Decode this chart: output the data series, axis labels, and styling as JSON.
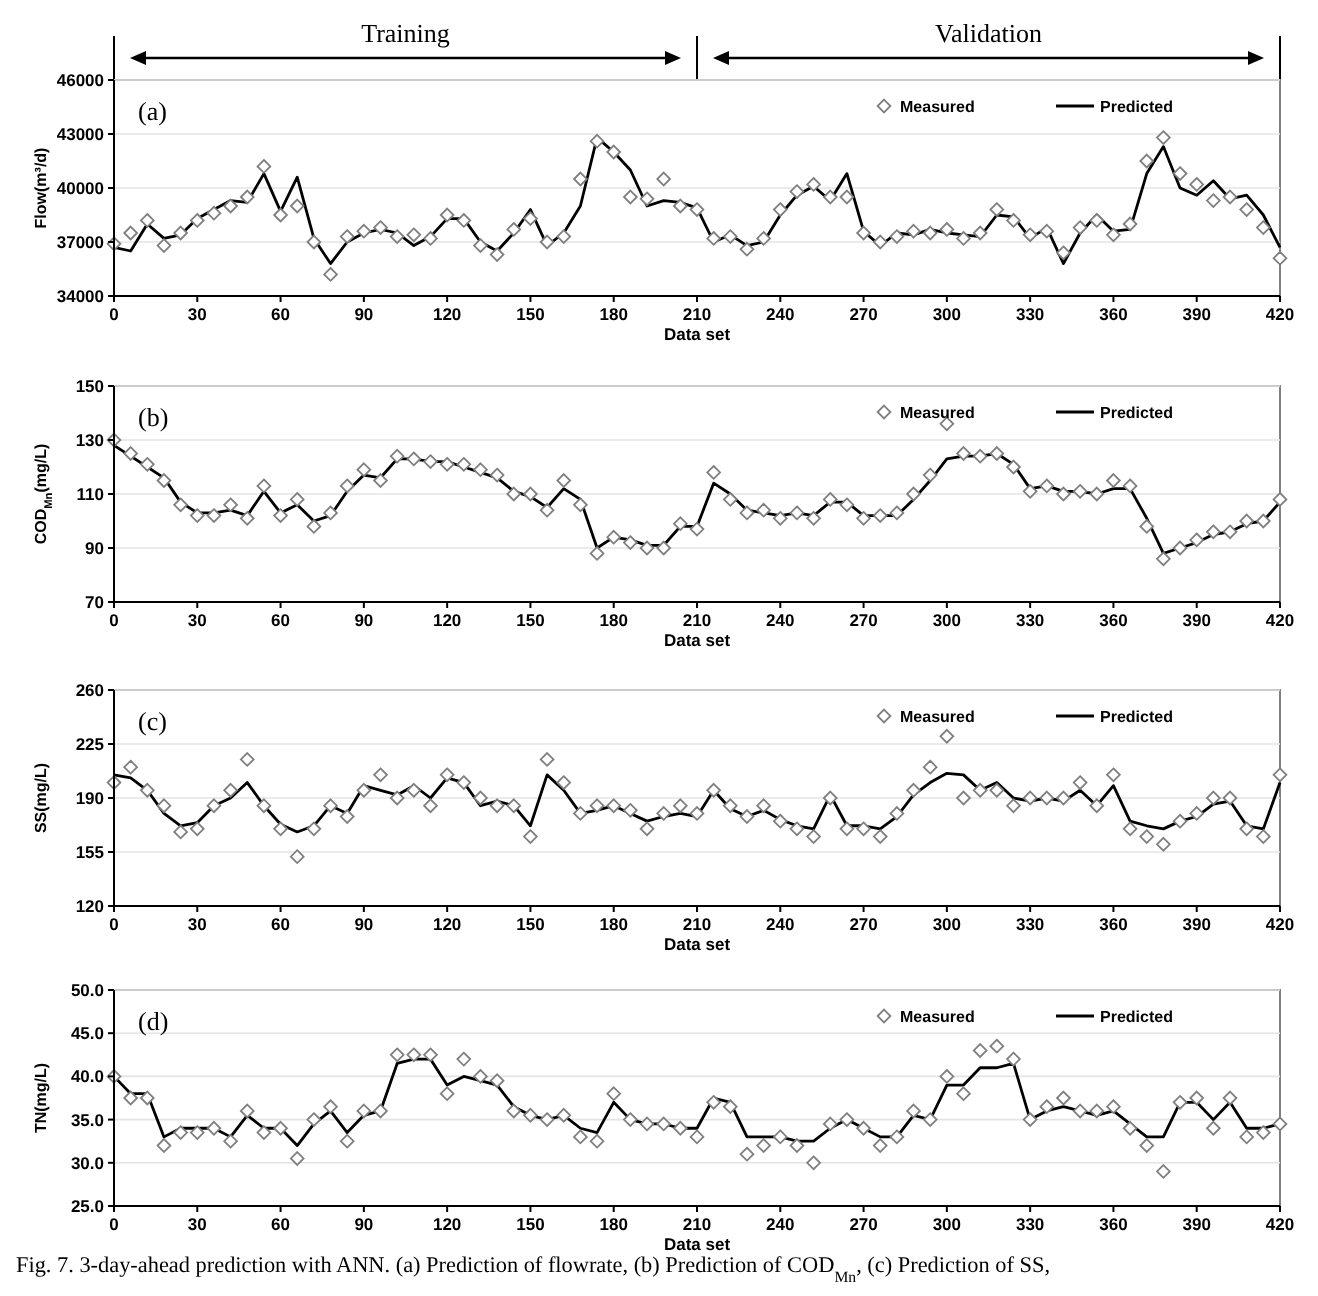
{
  "chart_data": [
    {
      "type": "line",
      "ylabel": "Flow(m³/d)",
      "xlabel": "Data set",
      "annotations": [
        "(a)",
        "Training",
        "Validation"
      ],
      "legend": "top right",
      "grid": "y",
      "xlim": [
        0,
        420
      ],
      "xticks": [
        0,
        30,
        60,
        90,
        120,
        150,
        180,
        210,
        240,
        270,
        300,
        330,
        360,
        390,
        420
      ],
      "ylim": [
        34000,
        46000
      ],
      "yticks": [
        34000,
        37000,
        40000,
        43000,
        46000
      ],
      "x": [
        0,
        6,
        12,
        18,
        24,
        30,
        36,
        42,
        48,
        54,
        60,
        66,
        72,
        78,
        84,
        90,
        96,
        102,
        108,
        114,
        120,
        126,
        132,
        138,
        144,
        150,
        156,
        162,
        168,
        174,
        180,
        186,
        192,
        198,
        204,
        210,
        216,
        222,
        228,
        234,
        240,
        246,
        252,
        258,
        264,
        270,
        276,
        282,
        288,
        294,
        300,
        306,
        312,
        318,
        324,
        330,
        336,
        342,
        348,
        354,
        360,
        366,
        372,
        378,
        384,
        390,
        396,
        402,
        408,
        414,
        420
      ],
      "series": [
        {
          "name": "Measured",
          "type": "scatter",
          "marker": "diamond",
          "color": "#7f7f7f",
          "values": [
            36900,
            37500,
            38200,
            36800,
            37500,
            38200,
            38600,
            39000,
            39500,
            41200,
            38500,
            39000,
            37000,
            35200,
            37300,
            37600,
            37800,
            37300,
            37400,
            37200,
            38500,
            38200,
            36800,
            36300,
            37700,
            38300,
            37000,
            37300,
            40500,
            42600,
            42000,
            39500,
            39400,
            40500,
            39000,
            38800,
            37200,
            37300,
            36600,
            37200,
            38800,
            39800,
            40200,
            39500,
            39500,
            37500,
            37000,
            37300,
            37600,
            37500,
            37700,
            37200,
            37500,
            38800,
            38200,
            37400,
            37600,
            36400,
            37800,
            38200,
            37400,
            38000,
            41500,
            42800,
            40800,
            40200,
            39300,
            39500,
            38800,
            37800,
            36100
          ]
        },
        {
          "name": "Predicted",
          "type": "line",
          "color": "#000000",
          "values": [
            36700,
            36500,
            38000,
            37200,
            37400,
            38300,
            38800,
            39300,
            39200,
            40800,
            38700,
            40600,
            37200,
            35800,
            37000,
            37500,
            37700,
            37500,
            36800,
            37300,
            38300,
            38300,
            37000,
            36500,
            37500,
            38800,
            36800,
            37500,
            39000,
            42800,
            42000,
            41000,
            39000,
            39300,
            39200,
            38900,
            37000,
            37400,
            36800,
            37000,
            38500,
            39600,
            40100,
            39300,
            40800,
            37600,
            36800,
            37500,
            37400,
            37700,
            37500,
            37400,
            37300,
            38500,
            38400,
            37200,
            37800,
            35800,
            37500,
            38500,
            37600,
            37700,
            40800,
            42300,
            40000,
            39600,
            40400,
            39400,
            39600,
            38500,
            36700
          ]
        }
      ]
    },
    {
      "type": "line",
      "ylabel": "COD$_{Mn}$(mg/L)",
      "xlabel": "Data set",
      "annotations": [
        "(b)"
      ],
      "legend": "top right",
      "grid": "y",
      "xlim": [
        0,
        420
      ],
      "xticks": [
        0,
        30,
        60,
        90,
        120,
        150,
        180,
        210,
        240,
        270,
        300,
        330,
        360,
        390,
        420
      ],
      "ylim": [
        70,
        150
      ],
      "yticks": [
        70,
        90,
        110,
        130,
        150
      ],
      "x": [
        0,
        6,
        12,
        18,
        24,
        30,
        36,
        42,
        48,
        54,
        60,
        66,
        72,
        78,
        84,
        90,
        96,
        102,
        108,
        114,
        120,
        126,
        132,
        138,
        144,
        150,
        156,
        162,
        168,
        174,
        180,
        186,
        192,
        198,
        204,
        210,
        216,
        222,
        228,
        234,
        240,
        246,
        252,
        258,
        264,
        270,
        276,
        282,
        288,
        294,
        300,
        306,
        312,
        318,
        324,
        330,
        336,
        342,
        348,
        354,
        360,
        366,
        372,
        378,
        384,
        390,
        396,
        402,
        408,
        414,
        420
      ],
      "series": [
        {
          "name": "Measured",
          "type": "scatter",
          "marker": "diamond",
          "color": "#7f7f7f",
          "values": [
            130,
            125,
            121,
            115,
            106,
            102,
            102,
            106,
            101,
            113,
            102,
            108,
            98,
            103,
            113,
            119,
            115,
            124,
            123,
            122,
            121,
            121,
            119,
            117,
            110,
            110,
            104,
            115,
            106,
            88,
            94,
            92,
            90,
            90,
            99,
            97,
            118,
            108,
            103,
            104,
            101,
            103,
            101,
            108,
            106,
            101,
            102,
            103,
            110,
            117,
            136,
            125,
            124,
            125,
            120,
            111,
            113,
            110,
            111,
            110,
            115,
            113,
            98,
            86,
            90,
            93,
            96,
            96,
            100,
            100,
            108
          ]
        },
        {
          "name": "Predicted",
          "type": "line",
          "color": "#000000",
          "values": [
            128,
            124,
            120,
            116,
            107,
            103,
            103,
            104,
            102,
            111,
            103,
            106,
            100,
            102,
            111,
            117,
            116,
            123,
            123,
            122,
            122,
            120,
            118,
            116,
            111,
            109,
            105,
            112,
            108,
            90,
            94,
            93,
            91,
            91,
            98,
            98,
            114,
            110,
            104,
            103,
            102,
            103,
            102,
            107,
            107,
            102,
            102,
            102,
            108,
            115,
            123,
            124,
            124,
            125,
            121,
            112,
            113,
            111,
            111,
            110,
            112,
            112,
            101,
            88,
            90,
            92,
            95,
            96,
            99,
            100,
            107
          ]
        }
      ]
    },
    {
      "type": "line",
      "ylabel": "SS(mg/L)",
      "xlabel": "Data set",
      "annotations": [
        "(c)"
      ],
      "legend": "top right",
      "grid": "y",
      "xlim": [
        0,
        420
      ],
      "xticks": [
        0,
        30,
        60,
        90,
        120,
        150,
        180,
        210,
        240,
        270,
        300,
        330,
        360,
        390,
        420
      ],
      "ylim": [
        120,
        260
      ],
      "yticks": [
        120,
        155,
        190,
        225,
        260
      ],
      "x": [
        0,
        6,
        12,
        18,
        24,
        30,
        36,
        42,
        48,
        54,
        60,
        66,
        72,
        78,
        84,
        90,
        96,
        102,
        108,
        114,
        120,
        126,
        132,
        138,
        144,
        150,
        156,
        162,
        168,
        174,
        180,
        186,
        192,
        198,
        204,
        210,
        216,
        222,
        228,
        234,
        240,
        246,
        252,
        258,
        264,
        270,
        276,
        282,
        288,
        294,
        300,
        306,
        312,
        318,
        324,
        330,
        336,
        342,
        348,
        354,
        360,
        366,
        372,
        378,
        384,
        390,
        396,
        402,
        408,
        414,
        420
      ],
      "series": [
        {
          "name": "Measured",
          "type": "scatter",
          "marker": "diamond",
          "color": "#7f7f7f",
          "values": [
            200,
            210,
            195,
            185,
            168,
            170,
            185,
            195,
            215,
            185,
            170,
            152,
            170,
            185,
            178,
            195,
            205,
            190,
            195,
            185,
            205,
            200,
            190,
            185,
            185,
            165,
            215,
            200,
            180,
            185,
            185,
            182,
            170,
            180,
            185,
            180,
            195,
            185,
            178,
            185,
            175,
            170,
            165,
            190,
            170,
            170,
            165,
            180,
            195,
            210,
            230,
            190,
            195,
            195,
            185,
            190,
            190,
            190,
            200,
            185,
            205,
            170,
            165,
            160,
            175,
            180,
            190,
            190,
            170,
            165,
            205
          ]
        },
        {
          "name": "Predicted",
          "type": "line",
          "color": "#000000",
          "values": [
            205,
            203,
            195,
            180,
            172,
            174,
            185,
            190,
            200,
            185,
            173,
            168,
            172,
            185,
            180,
            198,
            195,
            192,
            198,
            190,
            203,
            200,
            185,
            188,
            185,
            172,
            205,
            195,
            180,
            182,
            185,
            180,
            175,
            178,
            180,
            178,
            195,
            183,
            178,
            182,
            176,
            172,
            170,
            192,
            172,
            172,
            170,
            178,
            192,
            200,
            206,
            205,
            195,
            200,
            190,
            188,
            190,
            188,
            195,
            185,
            198,
            175,
            172,
            170,
            175,
            178,
            186,
            188,
            172,
            170,
            200
          ]
        }
      ]
    },
    {
      "type": "line",
      "ylabel": "TN(mg/L)",
      "xlabel": "Data set",
      "annotations": [
        "(d)",
        "Fig. 7. 3-day-ahead prediction with ANN. (a) Prediction of flowrate, (b) Prediction of COD$_{Mn}$, (c) Prediction of SS,"
      ],
      "legend": "top right",
      "grid": "y",
      "xlim": [
        0,
        420
      ],
      "xticks": [
        0,
        30,
        60,
        90,
        120,
        150,
        180,
        210,
        240,
        270,
        300,
        330,
        360,
        390,
        420
      ],
      "ylim": [
        25,
        50
      ],
      "yticks": [
        {
          "value": 25,
          "label": "25.0"
        },
        {
          "value": 30,
          "label": "30.0"
        },
        {
          "value": 35,
          "label": "35.0"
        },
        {
          "value": 40,
          "label": "40.0"
        },
        {
          "value": 45,
          "label": "45.0"
        },
        {
          "value": 50,
          "label": "50.0"
        }
      ],
      "x": [
        0,
        6,
        12,
        18,
        24,
        30,
        36,
        42,
        48,
        54,
        60,
        66,
        72,
        78,
        84,
        90,
        96,
        102,
        108,
        114,
        120,
        126,
        132,
        138,
        144,
        150,
        156,
        162,
        168,
        174,
        180,
        186,
        192,
        198,
        204,
        210,
        216,
        222,
        228,
        234,
        240,
        246,
        252,
        258,
        264,
        270,
        276,
        282,
        288,
        294,
        300,
        306,
        312,
        318,
        324,
        330,
        336,
        342,
        348,
        354,
        360,
        366,
        372,
        378,
        384,
        390,
        396,
        402,
        408,
        414,
        420
      ],
      "series": [
        {
          "name": "Measured",
          "type": "scatter",
          "marker": "diamond",
          "color": "#7f7f7f",
          "values": [
            40,
            37.5,
            37.5,
            32,
            33.5,
            33.5,
            34,
            32.5,
            36,
            33.5,
            34,
            30.5,
            35,
            36.5,
            32.5,
            36,
            36,
            42.5,
            42.5,
            42.5,
            38,
            42,
            40,
            39.5,
            36,
            35.5,
            35,
            35.5,
            33,
            32.5,
            38,
            35,
            34.5,
            34.5,
            34,
            33,
            37,
            36.5,
            31,
            32,
            33,
            32,
            30,
            34.5,
            35,
            34,
            32,
            33,
            36,
            35,
            40,
            38,
            43,
            43.5,
            42,
            35,
            36.5,
            37.5,
            36,
            36,
            36.5,
            34,
            32,
            29,
            37,
            37.5,
            34,
            37.5,
            33,
            33.5,
            34.5
          ]
        },
        {
          "name": "Predicted",
          "type": "line",
          "color": "#000000",
          "values": [
            40,
            38,
            38,
            33,
            34,
            34,
            34,
            33,
            35.5,
            34,
            34,
            32,
            34.5,
            36,
            33.5,
            35.5,
            36,
            41.5,
            42,
            42,
            39,
            40,
            39.5,
            39,
            36.5,
            35.5,
            35,
            35.5,
            34,
            33.5,
            37,
            35,
            34.5,
            34.5,
            34,
            34,
            37.5,
            37,
            33,
            33,
            33,
            32.5,
            32.5,
            34,
            35,
            34,
            33,
            33,
            35.5,
            35,
            39,
            39,
            41,
            41,
            41.5,
            35,
            36,
            36.5,
            36,
            35.5,
            36,
            34.5,
            33,
            33,
            37,
            37,
            35,
            37,
            34,
            34,
            34.5
          ]
        }
      ]
    }
  ]
}
